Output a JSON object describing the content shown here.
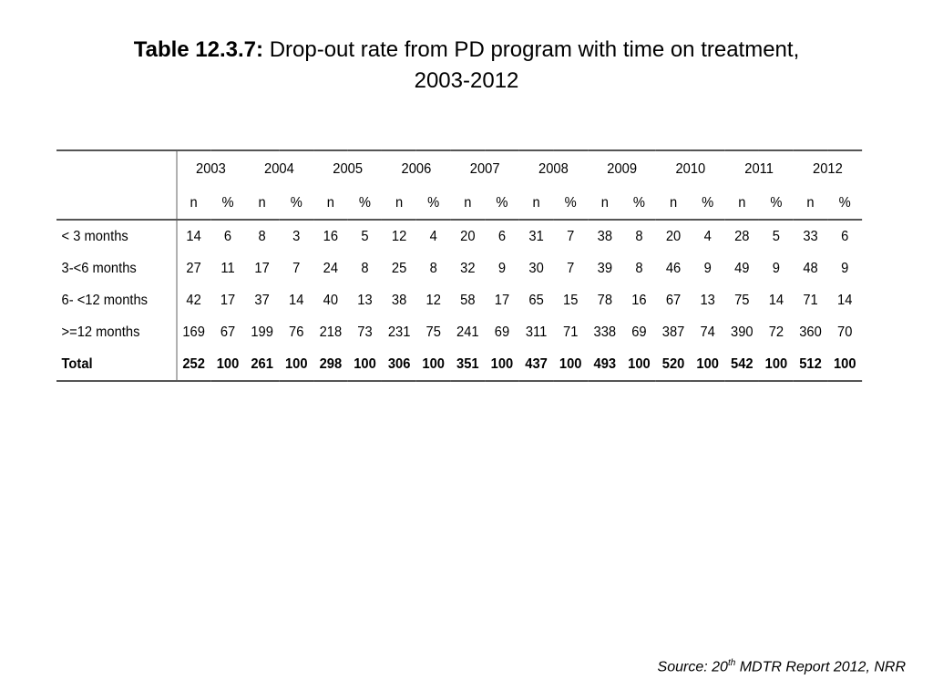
{
  "title": {
    "bold": "Table 12.3.7:",
    "text": " Drop-out rate from PD program with time on treatment,",
    "line2": "2003-2012"
  },
  "table": {
    "years": [
      "2003",
      "2004",
      "2005",
      "2006",
      "2007",
      "2008",
      "2009",
      "2010",
      "2011",
      "2012"
    ],
    "subheaders": [
      "n",
      "%"
    ],
    "rows": [
      {
        "label": "< 3 months",
        "values": [
          "14",
          "6",
          "8",
          "3",
          "16",
          "5",
          "12",
          "4",
          "20",
          "6",
          "31",
          "7",
          "38",
          "8",
          "20",
          "4",
          "28",
          "5",
          "33",
          "6"
        ]
      },
      {
        "label": "3-<6 months",
        "values": [
          "27",
          "11",
          "17",
          "7",
          "24",
          "8",
          "25",
          "8",
          "32",
          "9",
          "30",
          "7",
          "39",
          "8",
          "46",
          "9",
          "49",
          "9",
          "48",
          "9"
        ]
      },
      {
        "label": "6- <12 months",
        "values": [
          "42",
          "17",
          "37",
          "14",
          "40",
          "13",
          "38",
          "12",
          "58",
          "17",
          "65",
          "15",
          "78",
          "16",
          "67",
          "13",
          "75",
          "14",
          "71",
          "14"
        ]
      },
      {
        "label": ">=12 months",
        "values": [
          "169",
          "67",
          "199",
          "76",
          "218",
          "73",
          "231",
          "75",
          "241",
          "69",
          "311",
          "71",
          "338",
          "69",
          "387",
          "74",
          "390",
          "72",
          "360",
          "70"
        ]
      },
      {
        "label": "Total",
        "values": [
          "252",
          "100",
          "261",
          "100",
          "298",
          "100",
          "306",
          "100",
          "351",
          "100",
          "437",
          "100",
          "493",
          "100",
          "520",
          "100",
          "542",
          "100",
          "512",
          "100"
        ],
        "bold": true
      }
    ]
  },
  "source": {
    "prefix": "Source: 20",
    "sup": "th",
    "suffix": " MDTR Report 2012, NRR"
  }
}
